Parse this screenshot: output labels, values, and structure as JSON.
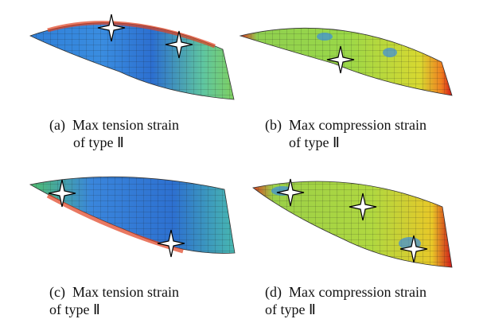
{
  "panels": [
    {
      "label": "(a)",
      "line1": "Max tension strain",
      "line2": "of type Ⅱ"
    },
    {
      "label": "(b)",
      "line1": "Max compression strain",
      "line2": "of type Ⅱ"
    },
    {
      "label": "(c)",
      "line1": "Max tension strain",
      "line2": "of type Ⅱ"
    },
    {
      "label": "(d)",
      "line1": "Max compression strain",
      "line2": "of type Ⅱ"
    }
  ]
}
